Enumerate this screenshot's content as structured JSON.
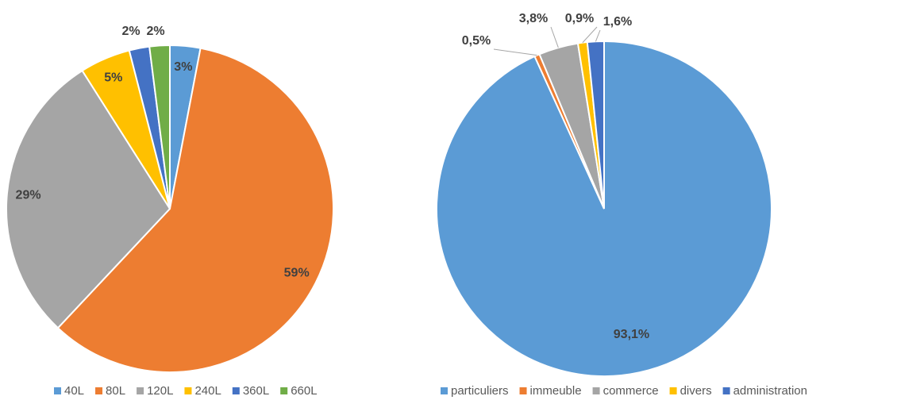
{
  "chart_data": [
    {
      "type": "pie",
      "categories": [
        "40L",
        "80L",
        "120L",
        "240L",
        "360L",
        "660L"
      ],
      "values": [
        3,
        59,
        29,
        5,
        2,
        2
      ],
      "value_labels": [
        "3%",
        "59%",
        "29%",
        "5%",
        "2%",
        "2%"
      ],
      "colors": [
        "#5b9bd5",
        "#ed7d31",
        "#a5a5a5",
        "#ffc000",
        "#4472c4",
        "#70ad47"
      ],
      "legend": "bottom"
    },
    {
      "type": "pie",
      "categories": [
        "particuliers",
        "immeuble",
        "commerce",
        "divers",
        "administration"
      ],
      "values": [
        93.1,
        0.5,
        3.8,
        0.9,
        1.6
      ],
      "value_labels": [
        "93,1%",
        "0,5%",
        "3,8%",
        "0,9%",
        "1,6%"
      ],
      "colors": [
        "#5b9bd5",
        "#ed7d31",
        "#a5a5a5",
        "#ffc000",
        "#4472c4"
      ],
      "legend": "bottom"
    }
  ]
}
